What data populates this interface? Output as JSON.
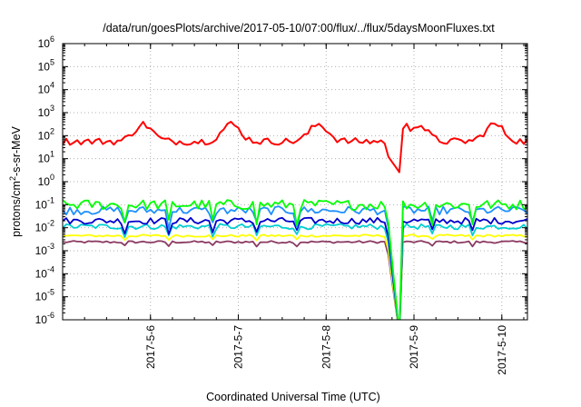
{
  "chart_data": {
    "type": "line",
    "title": "/data/run/goesPlots/archive/2017-05-10/07:00/flux/../flux/5daysMoonFluxes.txt",
    "xlabel": "Coordinated Universal Time (UTC)",
    "ylabel": "protons/cm²-s-sr-MeV",
    "ylabel_parts": {
      "base": "protons/cm",
      "sup": "2",
      "rest": "-s-sr-MeV"
    },
    "y_scale": "log",
    "ylim": [
      "1e-6",
      "1e6"
    ],
    "y_ticks": [
      {
        "label": "10",
        "exp": "-6",
        "value": -6
      },
      {
        "label": "10",
        "exp": "-5",
        "value": -5
      },
      {
        "label": "10",
        "exp": "-4",
        "value": -4
      },
      {
        "label": "10",
        "exp": "-3",
        "value": -3
      },
      {
        "label": "10",
        "exp": "-2",
        "value": -2
      },
      {
        "label": "10",
        "exp": "-1",
        "value": -1
      },
      {
        "label": "10",
        "exp": "0",
        "value": 0
      },
      {
        "label": "10",
        "exp": "1",
        "value": 1
      },
      {
        "label": "10",
        "exp": "2",
        "value": 2
      },
      {
        "label": "10",
        "exp": "3",
        "value": 3
      },
      {
        "label": "10",
        "exp": "4",
        "value": 4
      },
      {
        "label": "10",
        "exp": "5",
        "value": 5
      },
      {
        "label": "10",
        "exp": "6",
        "value": 6
      }
    ],
    "xlim": [
      "2017-05-05 00:00",
      "2017-05-10 07:00"
    ],
    "x_ticks": [
      {
        "label": "2017-5-6",
        "date": "2017-05-06 00:00"
      },
      {
        "label": "2017-5-7",
        "date": "2017-05-07 00:00"
      },
      {
        "label": "2017-5-8",
        "date": "2017-05-08 00:00"
      },
      {
        "label": "2017-5-9",
        "date": "2017-05-09 00:00"
      },
      {
        "label": "2017-5-10",
        "date": "2017-05-10 00:00"
      }
    ],
    "grid": true,
    "series": [
      {
        "color": "#ff0000",
        "style": "red",
        "log_base": 1.75,
        "amp": 0.3,
        "dropout": "ramp",
        "humps": true
      },
      {
        "color": "#00ff00",
        "style": "green",
        "log_base": -1.0,
        "amp": 0.22,
        "dropout": "plunge"
      },
      {
        "color": "#1e90ff",
        "style": "lightblue",
        "log_base": -1.25,
        "amp": 0.18,
        "dropout": "plunge"
      },
      {
        "color": "#0000cd",
        "style": "darkblue",
        "log_base": -1.7,
        "amp": 0.14,
        "dropout": "plunge"
      },
      {
        "color": "#00ced1",
        "style": "cyan",
        "log_base": -1.95,
        "amp": 0.12,
        "dropout": "plunge"
      },
      {
        "color": "#ffff00",
        "style": "yellow",
        "log_base": -2.35,
        "amp": 0.05,
        "dropout": "plunge"
      },
      {
        "color": "#8b3a62",
        "style": "purple",
        "log_base": -2.62,
        "amp": 0.05,
        "dropout": "plunge"
      }
    ]
  }
}
